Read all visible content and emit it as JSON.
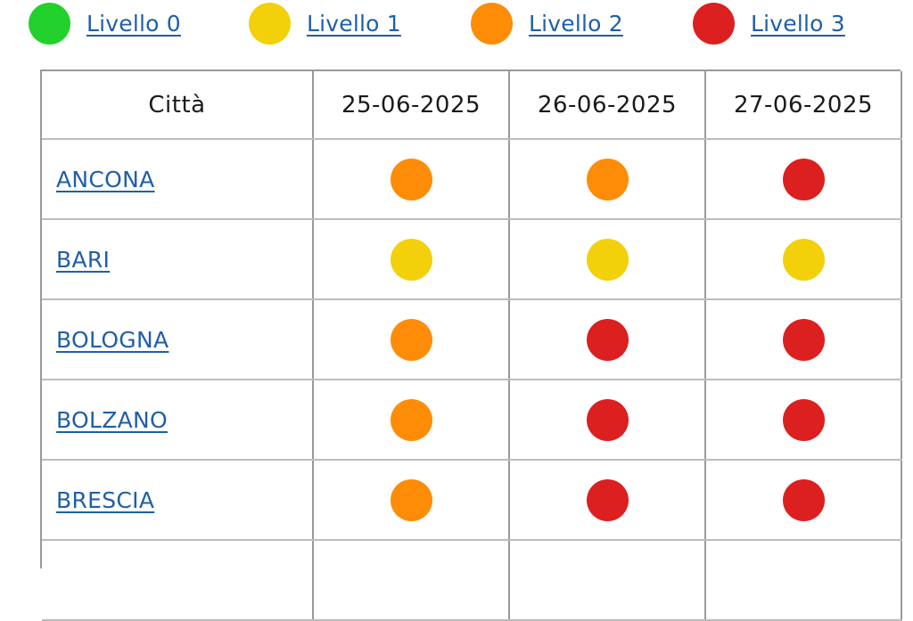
{
  "legend": {
    "items": [
      {
        "label": "Livello 0",
        "level": 0,
        "color": "#22d12b"
      },
      {
        "label": "Livello 1",
        "level": 1,
        "color": "#f2d10a"
      },
      {
        "label": "Livello 2",
        "level": 2,
        "color": "#fe8c06"
      },
      {
        "label": "Livello 3",
        "level": 3,
        "color": "#dc1f1f"
      }
    ]
  },
  "table": {
    "headers": [
      "Città",
      "25-06-2025",
      "26-06-2025",
      "27-06-2025"
    ],
    "rows": [
      {
        "city": "ANCONA",
        "levels": [
          2,
          2,
          3
        ]
      },
      {
        "city": "BARI",
        "levels": [
          1,
          1,
          1
        ]
      },
      {
        "city": "BOLOGNA",
        "levels": [
          2,
          3,
          3
        ]
      },
      {
        "city": "BOLZANO",
        "levels": [
          2,
          3,
          3
        ]
      },
      {
        "city": "BRESCIA",
        "levels": [
          2,
          3,
          3
        ]
      }
    ]
  }
}
